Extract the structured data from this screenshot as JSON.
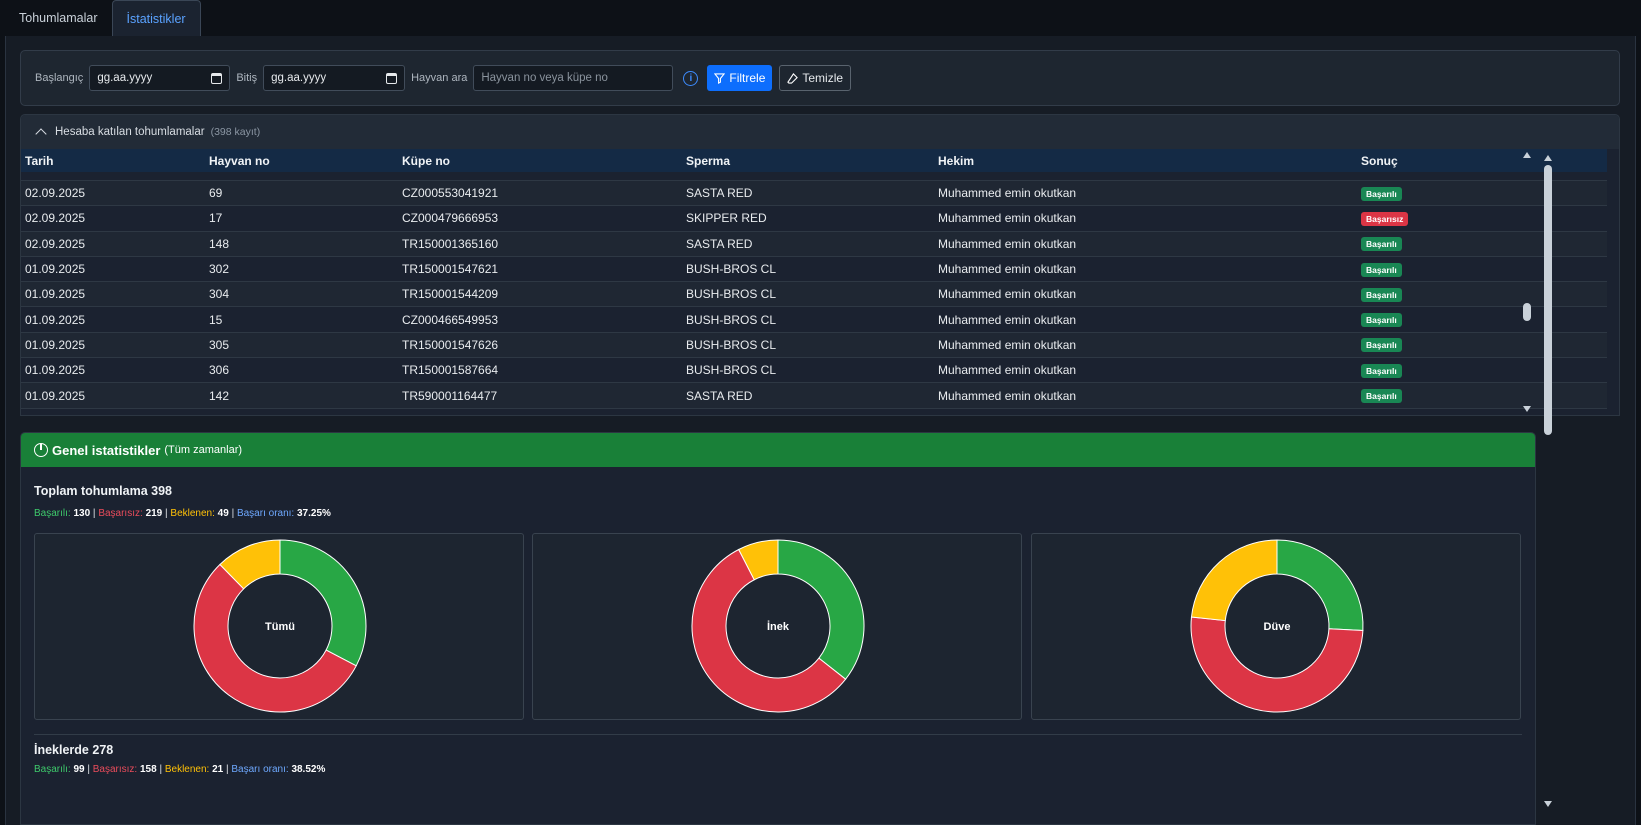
{
  "tabs": [
    {
      "label": "Tohumlamalar"
    },
    {
      "label": "İstatistikler"
    }
  ],
  "filters": {
    "start_label": "Başlangıç",
    "start_value": "gg.aa.yyyy",
    "end_label": "Bitiş",
    "end_value": "gg.aa.yyyy",
    "search_label": "Hayvan ara",
    "search_placeholder": "Hayvan no veya küpe no",
    "filter_button": "Filtrele",
    "clear_button": "Temizle"
  },
  "table": {
    "section_title": "Hesaba katılan tohumlamalar",
    "record_count": "(398 kayıt)",
    "columns": [
      "Tarih",
      "Hayvan no",
      "Küpe no",
      "Sperma",
      "Hekim",
      "Sonuç"
    ],
    "rows": [
      [
        "02.09.2025",
        "69",
        "CZ000553041921",
        "SASTA RED",
        "Muhammed emin okutkan",
        "Başarılı"
      ],
      [
        "02.09.2025",
        "17",
        "CZ000479666953",
        "SKIPPER RED",
        "Muhammed emin okutkan",
        "Başarısız"
      ],
      [
        "02.09.2025",
        "148",
        "TR150001365160",
        "SASTA RED",
        "Muhammed emin okutkan",
        "Başarılı"
      ],
      [
        "01.09.2025",
        "302",
        "TR150001547621",
        "BUSH-BROS CL",
        "Muhammed emin okutkan",
        "Başarılı"
      ],
      [
        "01.09.2025",
        "304",
        "TR150001544209",
        "BUSH-BROS CL",
        "Muhammed emin okutkan",
        "Başarılı"
      ],
      [
        "01.09.2025",
        "15",
        "CZ000466549953",
        "BUSH-BROS CL",
        "Muhammed emin okutkan",
        "Başarılı"
      ],
      [
        "01.09.2025",
        "305",
        "TR150001547626",
        "BUSH-BROS CL",
        "Muhammed emin okutkan",
        "Başarılı"
      ],
      [
        "01.09.2025",
        "306",
        "TR150001587664",
        "BUSH-BROS CL",
        "Muhammed emin okutkan",
        "Başarılı"
      ],
      [
        "01.09.2025",
        "142",
        "TR590001164477",
        "SASTA RED",
        "Muhammed emin okutkan",
        "Başarılı"
      ]
    ]
  },
  "stats": {
    "header_title": "Genel istatistikler",
    "header_sub": "(Tüm zamanlar)",
    "total": {
      "title": "Toplam tohumlama 398",
      "success_label": "Başarılı:",
      "success": "130",
      "fail_label": "Başarısız:",
      "fail": "219",
      "pending_label": "Beklenen:",
      "pending": "49",
      "rate_label": "Başarı oranı:",
      "rate": "37.25%"
    },
    "cows": {
      "title": "İneklerde 278",
      "success_label": "Başarılı:",
      "success": "99",
      "fail_label": "Başarısız:",
      "fail": "158",
      "pending_label": "Beklenen:",
      "pending": "21",
      "rate_label": "Başarı oranı:",
      "rate": "38.52%"
    },
    "colors": {
      "success": "#28a745",
      "fail": "#dc3545",
      "pending": "#ffc107"
    }
  },
  "chart_data": [
    {
      "type": "pie",
      "center_label": "Tümü",
      "categories": [
        "Başarılı",
        "Başarısız",
        "Beklenen"
      ],
      "values": [
        130,
        219,
        49
      ]
    },
    {
      "type": "pie",
      "center_label": "İnek",
      "categories": [
        "Başarılı",
        "Başarısız",
        "Beklenen"
      ],
      "values": [
        99,
        158,
        21
      ]
    },
    {
      "type": "pie",
      "center_label": "Düve",
      "categories": [
        "Başarılı",
        "Başarısız",
        "Beklenen"
      ],
      "values": [
        31,
        61,
        28
      ]
    }
  ]
}
